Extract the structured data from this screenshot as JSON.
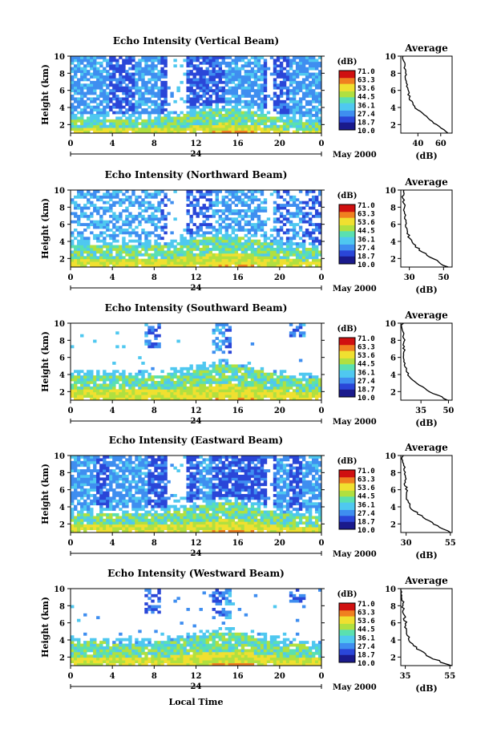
{
  "colors": [
    "#1a1a8c",
    "#2a46d8",
    "#3f8ef0",
    "#4fc8f0",
    "#5ae0b0",
    "#b0e040",
    "#f0e030",
    "#f08020",
    "#d01010"
  ],
  "colorbar": {
    "unit": "(dB)",
    "levels": [
      "71.0",
      "63.3",
      "53.6",
      "44.5",
      "36.1",
      "27.4",
      "18.7",
      "10.0"
    ]
  },
  "footer": {
    "xlabel": "Local Time",
    "date_label": "May 2000"
  },
  "chart_data": [
    {
      "type": "heatmap",
      "title": "Echo Intensity (Vertical Beam)",
      "ylabel": "Height (km)",
      "x_ticks": [
        "0",
        "4",
        "8",
        "12",
        "16",
        "20",
        "0"
      ],
      "x_day_label": "24",
      "date_label": "May 2000",
      "y_ticks": [
        "2",
        "4",
        "6",
        "8",
        "10"
      ],
      "xlim": [
        0,
        24
      ],
      "ylim": [
        1,
        10
      ],
      "colorbar_range": [
        10.0,
        71.0
      ],
      "profile": {
        "title": "Average",
        "xlabel": "(dB)",
        "x_ticks": [
          "40",
          "60"
        ],
        "xlim": [
          25,
          70
        ],
        "heights": [
          1,
          2,
          3,
          4,
          5,
          6,
          7,
          8,
          9,
          10
        ],
        "values": [
          67,
          56,
          47,
          37,
          33,
          31,
          30,
          29,
          28,
          27
        ]
      }
    },
    {
      "type": "heatmap",
      "title": "Echo Intensity (Northward Beam)",
      "ylabel": "Height (km)",
      "x_ticks": [
        "0",
        "4",
        "8",
        "12",
        "16",
        "20",
        "0"
      ],
      "x_day_label": "24",
      "date_label": "May 2000",
      "y_ticks": [
        "2",
        "4",
        "6",
        "8",
        "10"
      ],
      "xlim": [
        0,
        24
      ],
      "ylim": [
        1,
        10
      ],
      "colorbar_range": [
        10.0,
        71.0
      ],
      "profile": {
        "title": "Average",
        "xlabel": "(dB)",
        "x_ticks": [
          "30",
          "50"
        ],
        "xlim": [
          25,
          55
        ],
        "heights": [
          1,
          2,
          3,
          4,
          5,
          6,
          7,
          8,
          9,
          10
        ],
        "values": [
          52,
          44,
          36,
          31,
          29,
          28,
          27.5,
          27,
          26.5,
          26
        ]
      }
    },
    {
      "type": "heatmap",
      "title": "Echo Intensity (Southward Beam)",
      "ylabel": "Height (km)",
      "x_ticks": [
        "0",
        "4",
        "8",
        "12",
        "16",
        "20",
        "0"
      ],
      "x_day_label": "24",
      "date_label": "May 2000",
      "y_ticks": [
        "2",
        "4",
        "6",
        "8",
        "10"
      ],
      "xlim": [
        0,
        24
      ],
      "ylim": [
        1,
        10
      ],
      "colorbar_range": [
        10.0,
        71.0
      ],
      "profile": {
        "title": "Average",
        "xlabel": "(dB)",
        "x_ticks": [
          "35",
          "50"
        ],
        "xlim": [
          24,
          52
        ],
        "heights": [
          1,
          2,
          3,
          4,
          5,
          6,
          7,
          8,
          9,
          10
        ],
        "values": [
          50,
          40,
          32,
          28,
          26.5,
          26,
          25.5,
          25.5,
          25,
          25
        ]
      }
    },
    {
      "type": "heatmap",
      "title": "Echo Intensity (Eastward Beam)",
      "ylabel": "Height (km)",
      "x_ticks": [
        "0",
        "4",
        "8",
        "12",
        "16",
        "20",
        "0"
      ],
      "x_day_label": "24",
      "date_label": "May 2000",
      "y_ticks": [
        "2",
        "4",
        "6",
        "8",
        "10"
      ],
      "xlim": [
        0,
        24
      ],
      "ylim": [
        1,
        10
      ],
      "colorbar_range": [
        10.0,
        71.0
      ],
      "profile": {
        "title": "Average",
        "xlabel": "(dB)",
        "x_ticks": [
          "30",
          "55"
        ],
        "xlim": [
          27,
          56
        ],
        "heights": [
          1,
          2,
          3,
          4,
          5,
          6,
          7,
          8,
          9,
          10
        ],
        "values": [
          55,
          46,
          38,
          32,
          30.5,
          30,
          29.5,
          29,
          28.5,
          28
        ]
      }
    },
    {
      "type": "heatmap",
      "title": "Echo Intensity (Westward Beam)",
      "ylabel": "Height (km)",
      "x_ticks": [
        "0",
        "4",
        "8",
        "12",
        "16",
        "20",
        "0"
      ],
      "x_day_label": "24",
      "date_label": "May 2000",
      "y_ticks": [
        "2",
        "4",
        "6",
        "8",
        "10"
      ],
      "xlim": [
        0,
        24
      ],
      "ylim": [
        1,
        10
      ],
      "colorbar_range": [
        10.0,
        71.0
      ],
      "profile": {
        "title": "Average",
        "xlabel": "(dB)",
        "x_ticks": [
          "35",
          "55"
        ],
        "xlim": [
          33,
          56
        ],
        "heights": [
          1,
          2,
          3,
          4,
          5,
          6,
          7,
          8,
          9,
          10
        ],
        "values": [
          55,
          46,
          40,
          37,
          35.5,
          35,
          34.5,
          34,
          34,
          33.5
        ]
      }
    }
  ]
}
